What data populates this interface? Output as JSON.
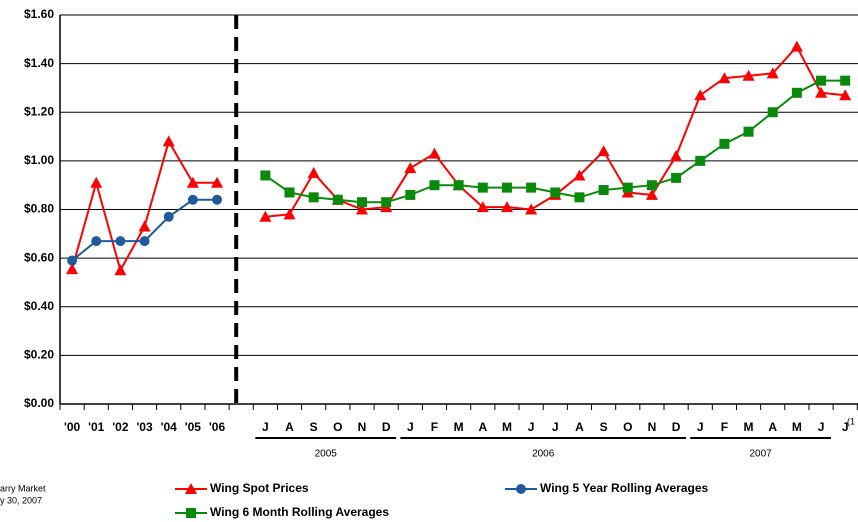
{
  "chart_data": {
    "type": "line",
    "categories": [
      "'00",
      "'01",
      "'02",
      "'03",
      "'04",
      "'05",
      "'06",
      null,
      "J",
      "A",
      "S",
      "O",
      "N",
      "D",
      "J",
      "F",
      "M",
      "A",
      "M",
      "J",
      "J",
      "A",
      "S",
      "O",
      "N",
      "D",
      "J",
      "F",
      "M",
      "A",
      "M",
      "J",
      "J"
    ],
    "year_groups": [
      {
        "label": "2005",
        "span": [
          8,
          13
        ]
      },
      {
        "label": "2006",
        "span": [
          14,
          25
        ]
      },
      {
        "label": "2007",
        "span": [
          26,
          31
        ]
      }
    ],
    "series": [
      {
        "name": "Wing Spot Prices",
        "color": "#ff0000",
        "marker": "triangle",
        "values": [
          0.555,
          0.91,
          0.55,
          0.73,
          1.08,
          0.91,
          0.91,
          null,
          0.77,
          0.78,
          0.95,
          0.84,
          0.8,
          0.81,
          0.97,
          1.03,
          0.9,
          0.81,
          0.81,
          0.8,
          0.86,
          0.94,
          1.04,
          0.87,
          0.86,
          1.02,
          1.27,
          1.34,
          1.35,
          1.36,
          1.47,
          1.28,
          1.27
        ]
      },
      {
        "name": "Wing 5 Year Rolling Averages",
        "color": "#1f5a9a",
        "marker": "circle",
        "values": [
          0.59,
          0.67,
          0.67,
          0.67,
          0.77,
          0.84,
          0.84,
          null,
          null,
          null,
          null,
          null,
          null,
          null,
          null,
          null,
          null,
          null,
          null,
          null,
          null,
          null,
          null,
          null,
          null,
          null,
          null,
          null,
          null,
          null,
          null,
          null,
          null
        ]
      },
      {
        "name": "Wing 6 Month Rolling Averages",
        "color": "#0a8a0a",
        "marker": "square",
        "values": [
          null,
          null,
          null,
          null,
          null,
          null,
          null,
          null,
          0.94,
          0.87,
          0.85,
          0.84,
          0.83,
          0.83,
          0.86,
          0.9,
          0.9,
          0.89,
          0.89,
          0.89,
          0.87,
          0.85,
          0.88,
          0.89,
          0.9,
          0.93,
          1.0,
          1.07,
          1.12,
          1.2,
          1.28,
          1.33,
          1.33
        ]
      }
    ],
    "ylim": [
      0,
      1.6
    ],
    "yticks": [
      {
        "value": 0,
        "label": "$0.00"
      },
      {
        "value": 0.2,
        "label": "$0.20"
      },
      {
        "value": 0.4,
        "label": "$0.40"
      },
      {
        "value": 0.6,
        "label": "$0.60"
      },
      {
        "value": 0.8,
        "label": "$0.80"
      },
      {
        "value": 1,
        "label": "$1.00"
      },
      {
        "value": 1.2,
        "label": "$1.20"
      },
      {
        "value": 1.4,
        "label": "$1.40"
      },
      {
        "value": 1.6,
        "label": "$1.60"
      }
    ],
    "grid": true,
    "legend": "bottom",
    "annotation": "(1",
    "source": [
      "arry Market",
      "y 30, 2007"
    ]
  }
}
